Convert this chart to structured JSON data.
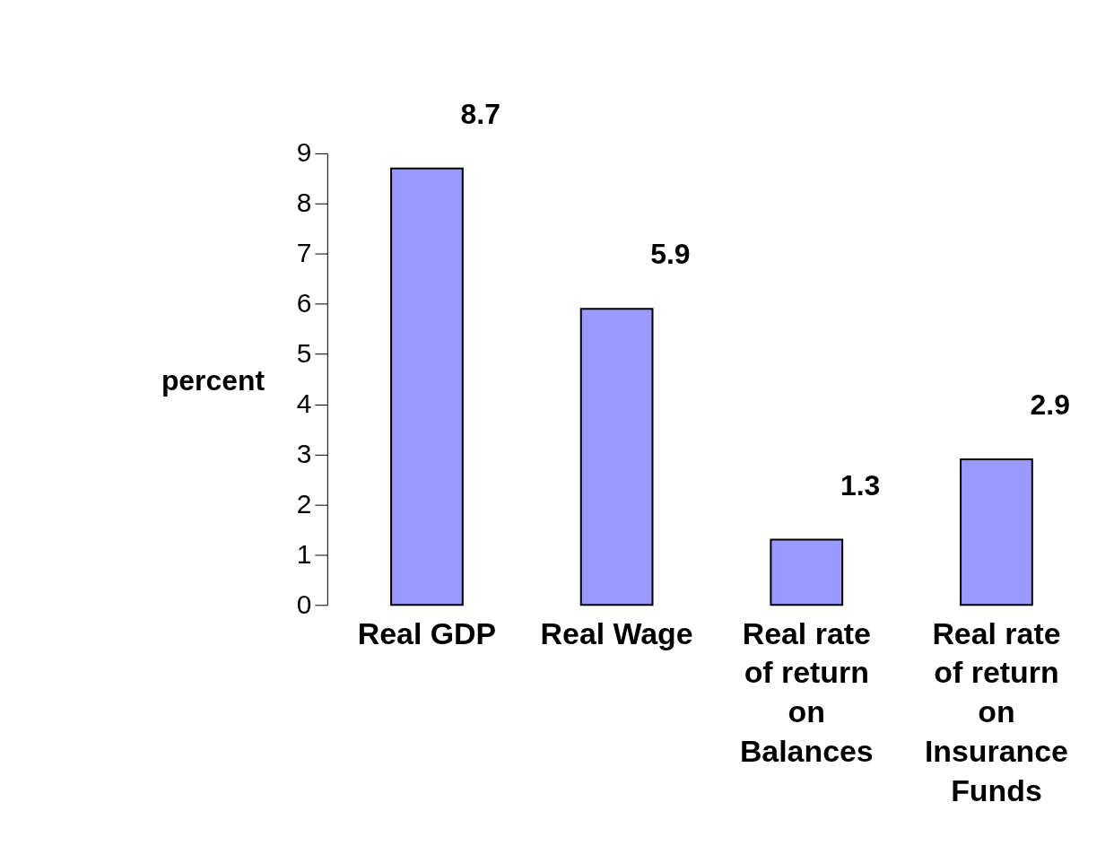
{
  "chart_data": {
    "type": "bar",
    "categories": [
      "Real GDP",
      "Real Wage",
      "Real rate of return on Balances",
      "Real rate of return on Insurance Funds"
    ],
    "values": [
      8.7,
      5.9,
      1.3,
      2.9
    ],
    "color": "#9999ff",
    "ylabel": "percent",
    "ylim": [
      0,
      9
    ],
    "yticks": [
      0,
      1,
      2,
      3,
      4,
      5,
      6,
      7,
      8,
      9
    ],
    "data_labels": true,
    "grid": false
  }
}
